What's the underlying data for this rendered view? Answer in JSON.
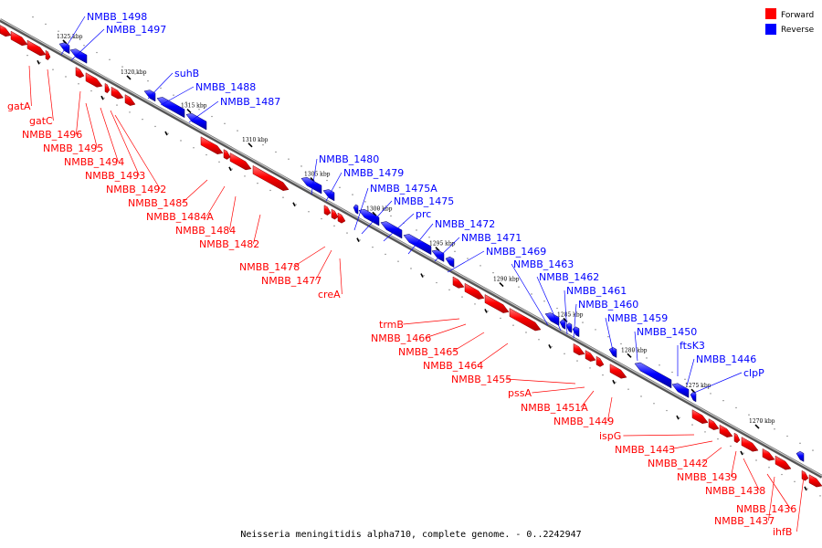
{
  "title": "Neisseria meningitidis alpha710, complete genome. - 0..2242947",
  "legend": [
    {
      "label": "Forward",
      "color": "#ff0000"
    },
    {
      "label": "Reverse",
      "color": "#0000ff"
    }
  ],
  "colors": {
    "forward": "#ff0000",
    "reverse": "#0000ff",
    "backbone": "#808080"
  },
  "scale_ticks": [
    "1325 kbp",
    "1320 kbp",
    "1315 kbp",
    "1310 kbp",
    "1305 kbp",
    "1300 kbp",
    "1295 kbp",
    "1290 kbp",
    "1285 kbp",
    "1280 kbp",
    "1275 kbp",
    "1270 kbp"
  ],
  "forward_labels": [
    "gatA",
    "gatC",
    "NMBB_1496",
    "NMBB_1495",
    "NMBB_1494",
    "NMBB_1493",
    "NMBB_1492",
    "NMBB_1485",
    "NMBB_1484A",
    "NMBB_1484",
    "NMBB_1482",
    "NMBB_1478",
    "NMBB_1477",
    "creA",
    "trmB",
    "NMBB_1466",
    "NMBB_1465",
    "NMBB_1464",
    "NMBB_1455",
    "pssA",
    "NMBB_1451A",
    "NMBB_1449",
    "ispG",
    "NMBB_1443",
    "NMBB_1442",
    "NMBB_1439",
    "NMBB_1438",
    "NMBB_1436",
    "NMBB_1437",
    "ihfB"
  ],
  "reverse_labels": [
    "NMBB_1498",
    "NMBB_1497",
    "suhB",
    "NMBB_1488",
    "NMBB_1487",
    "NMBB_1480",
    "NMBB_1479",
    "NMBB_1475A",
    "NMBB_1475",
    "prc",
    "NMBB_1472",
    "NMBB_1471",
    "NMBB_1469",
    "NMBB_1463",
    "NMBB_1462",
    "NMBB_1461",
    "NMBB_1460",
    "NMBB_1459",
    "NMBB_1450",
    "ftsK3",
    "NMBB_1446",
    "clpP"
  ]
}
